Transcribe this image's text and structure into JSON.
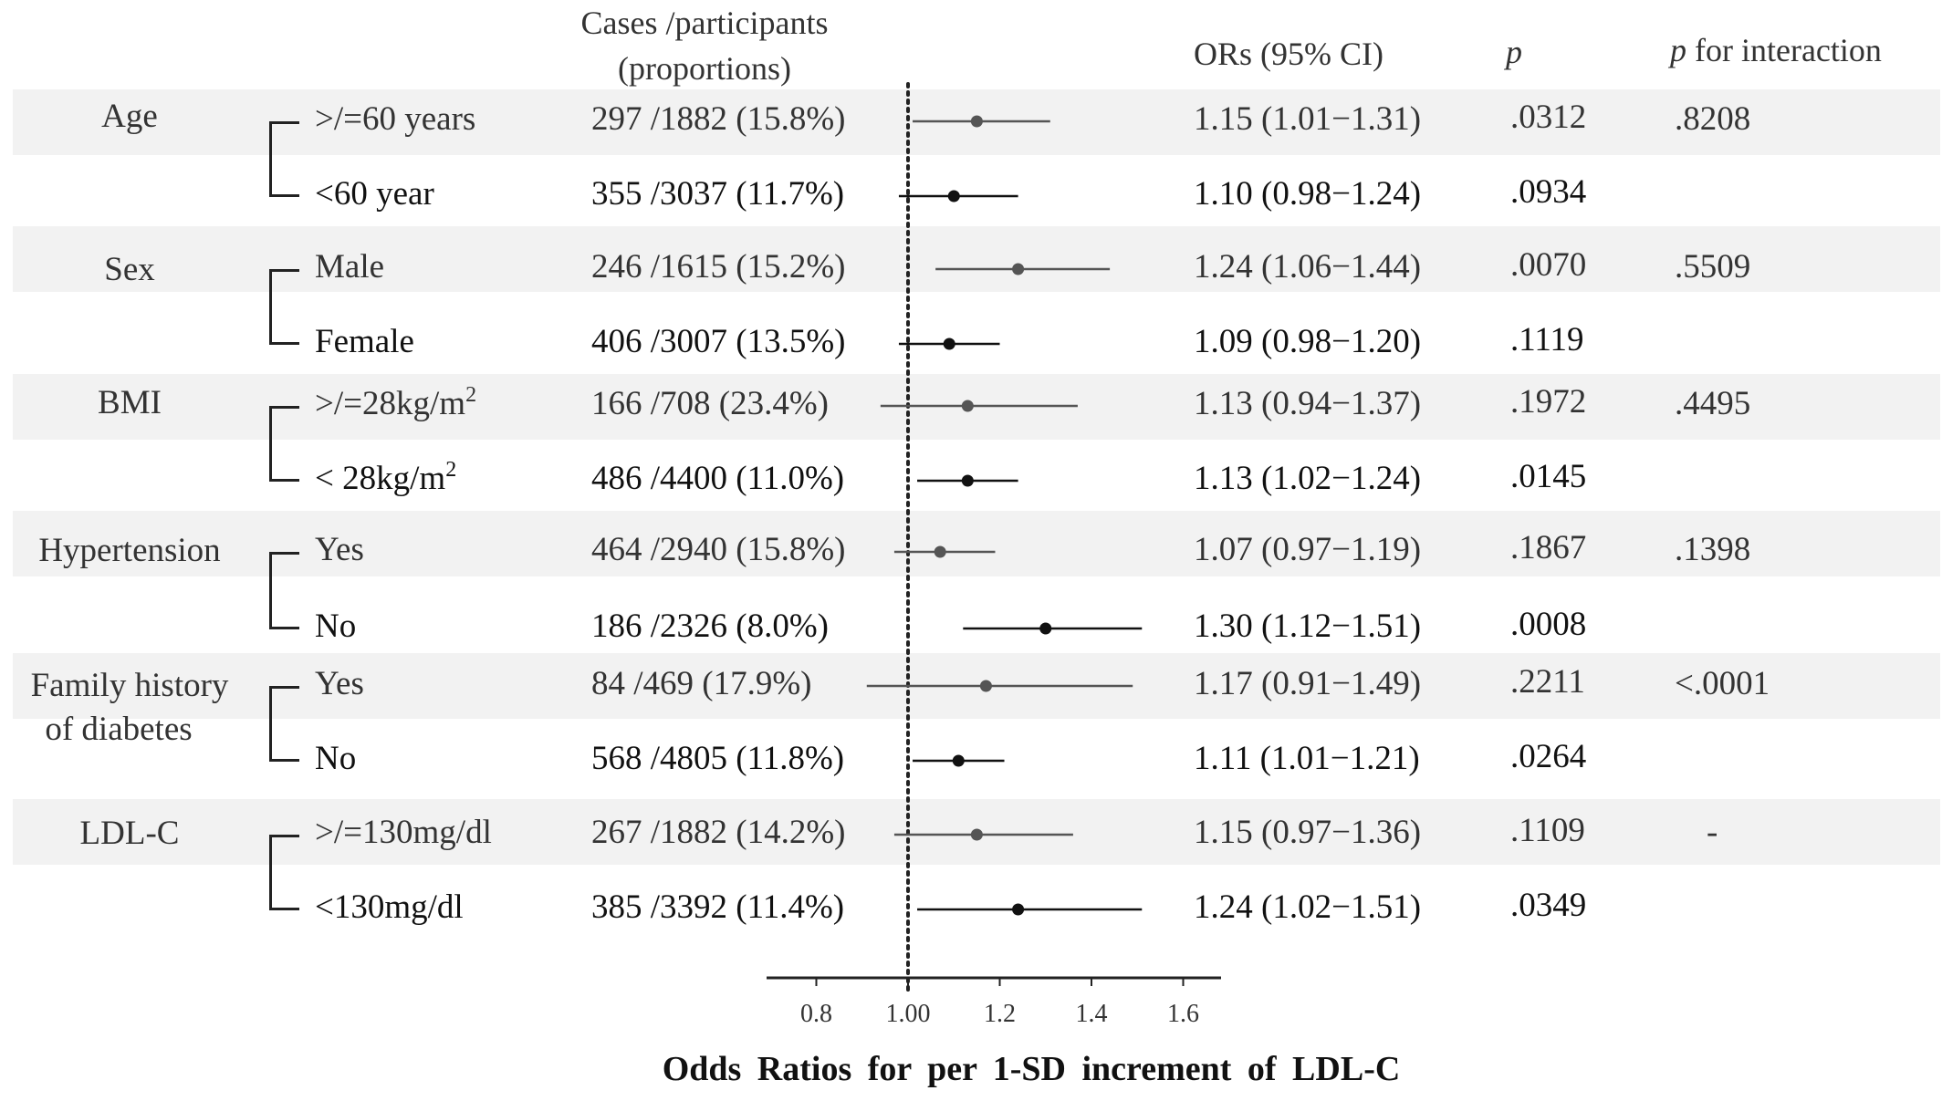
{
  "headers": {
    "cases_line1": "Cases /participants",
    "cases_line2": "(proportions)",
    "or": "ORs (95% CI)",
    "p": "p",
    "p_interaction_italic": "p",
    "p_interaction_rest": " for interaction"
  },
  "groups": [
    {
      "label": "Age",
      "p_interaction": ".8208",
      "rows": [
        {
          "sub": ">/=60 years",
          "cases": "297 /1882 (15.8%)",
          "or_text": "1.15 (1.01−1.31)",
          "p": ".0312",
          "or": 1.15,
          "lo": 1.01,
          "hi": 1.31
        },
        {
          "sub": "<60 year",
          "cases": "355 /3037 (11.7%)",
          "or_text": "1.10 (0.98−1.24)",
          "p": ".0934",
          "or": 1.1,
          "lo": 0.98,
          "hi": 1.24
        }
      ]
    },
    {
      "label": "Sex",
      "p_interaction": ".5509",
      "rows": [
        {
          "sub": "Male",
          "cases": "246 /1615 (15.2%)",
          "or_text": "1.24 (1.06−1.44)",
          "p": ".0070",
          "or": 1.24,
          "lo": 1.06,
          "hi": 1.44
        },
        {
          "sub": "Female",
          "cases": "406 /3007 (13.5%)",
          "or_text": "1.09 (0.98−1.20)",
          "p": ".1119",
          "or": 1.09,
          "lo": 0.98,
          "hi": 1.2
        }
      ]
    },
    {
      "label": "BMI",
      "p_interaction": ".4495",
      "rows": [
        {
          "sub": ">/=28kg/m",
          "sup": "2",
          "cases": "166 /708 (23.4%)",
          "or_text": "1.13 (0.94−1.37)",
          "p": ".1972",
          "or": 1.13,
          "lo": 0.94,
          "hi": 1.37
        },
        {
          "sub": "< 28kg/m",
          "sup": "2",
          "cases": "486 /4400 (11.0%)",
          "or_text": "1.13 (1.02−1.24)",
          "p": ".0145",
          "or": 1.13,
          "lo": 1.02,
          "hi": 1.24
        }
      ]
    },
    {
      "label": "Hypertension",
      "p_interaction": ".1398",
      "rows": [
        {
          "sub": "Yes",
          "cases": "464 /2940 (15.8%)",
          "or_text": "1.07 (0.97−1.19)",
          "p": ".1867",
          "or": 1.07,
          "lo": 0.97,
          "hi": 1.19
        },
        {
          "sub": "No",
          "cases": "186 /2326 (8.0%)",
          "or_text": "1.30 (1.12−1.51)",
          "p": ".0008",
          "or": 1.3,
          "lo": 1.12,
          "hi": 1.51
        }
      ]
    },
    {
      "label": "Family history",
      "label2": "of diabetes",
      "p_interaction": "<.0001",
      "rows": [
        {
          "sub": "Yes",
          "cases": "84 /469 (17.9%)",
          "or_text": "1.17 (0.91−1.49)",
          "p": ".2211",
          "or": 1.17,
          "lo": 0.91,
          "hi": 1.49
        },
        {
          "sub": "No",
          "cases": "568 /4805 (11.8%)",
          "or_text": "1.11 (1.01−1.21)",
          "p": ".0264",
          "or": 1.11,
          "lo": 1.01,
          "hi": 1.21
        }
      ]
    },
    {
      "label": "LDL-C",
      "p_interaction": "-",
      "rows": [
        {
          "sub": ">/=130mg/dl",
          "cases": "267 /1882 (14.2%)",
          "or_text": "1.15 (0.97−1.36)",
          "p": ".1109",
          "or": 1.15,
          "lo": 0.97,
          "hi": 1.36
        },
        {
          "sub": "<130mg/dl",
          "cases": "385 /3392 (11.4%)",
          "or_text": "1.24 (1.02−1.51)",
          "p": ".0349",
          "or": 1.24,
          "lo": 1.02,
          "hi": 1.51
        }
      ]
    }
  ],
  "chart_data": {
    "type": "scatter",
    "subtype": "forest-plot",
    "x_label": "Odds  Ratios  for per 1-SD  increment of LDL-C",
    "x_ticks": [
      0.8,
      1.0,
      1.2,
      1.4,
      1.6
    ],
    "x_tick_labels": [
      "0.8",
      "1.00",
      "1.2",
      "1.4",
      "1.6"
    ],
    "xlim": [
      0.7,
      1.7
    ],
    "reference_line": 1.0,
    "reference_style": "dotted",
    "marker": "dot",
    "series": [
      {
        "categories": [
          "Age >/=60 years",
          "Age <60 year",
          "Sex Male",
          "Sex Female",
          "BMI >/=28kg/m2",
          "BMI < 28kg/m2",
          "Hypertension Yes",
          "Hypertension No",
          "Family history of diabetes Yes",
          "Family history of diabetes No",
          "LDL-C >/=130mg/dl",
          "LDL-C <130mg/dl"
        ],
        "or": [
          1.15,
          1.1,
          1.24,
          1.09,
          1.13,
          1.13,
          1.07,
          1.3,
          1.17,
          1.11,
          1.15,
          1.24
        ],
        "ci_low": [
          1.01,
          0.98,
          1.06,
          0.98,
          0.94,
          1.02,
          0.97,
          1.12,
          0.91,
          1.01,
          0.97,
          1.02
        ],
        "ci_high": [
          1.31,
          1.24,
          1.44,
          1.2,
          1.37,
          1.24,
          1.19,
          1.51,
          1.49,
          1.21,
          1.36,
          1.51
        ]
      }
    ]
  }
}
